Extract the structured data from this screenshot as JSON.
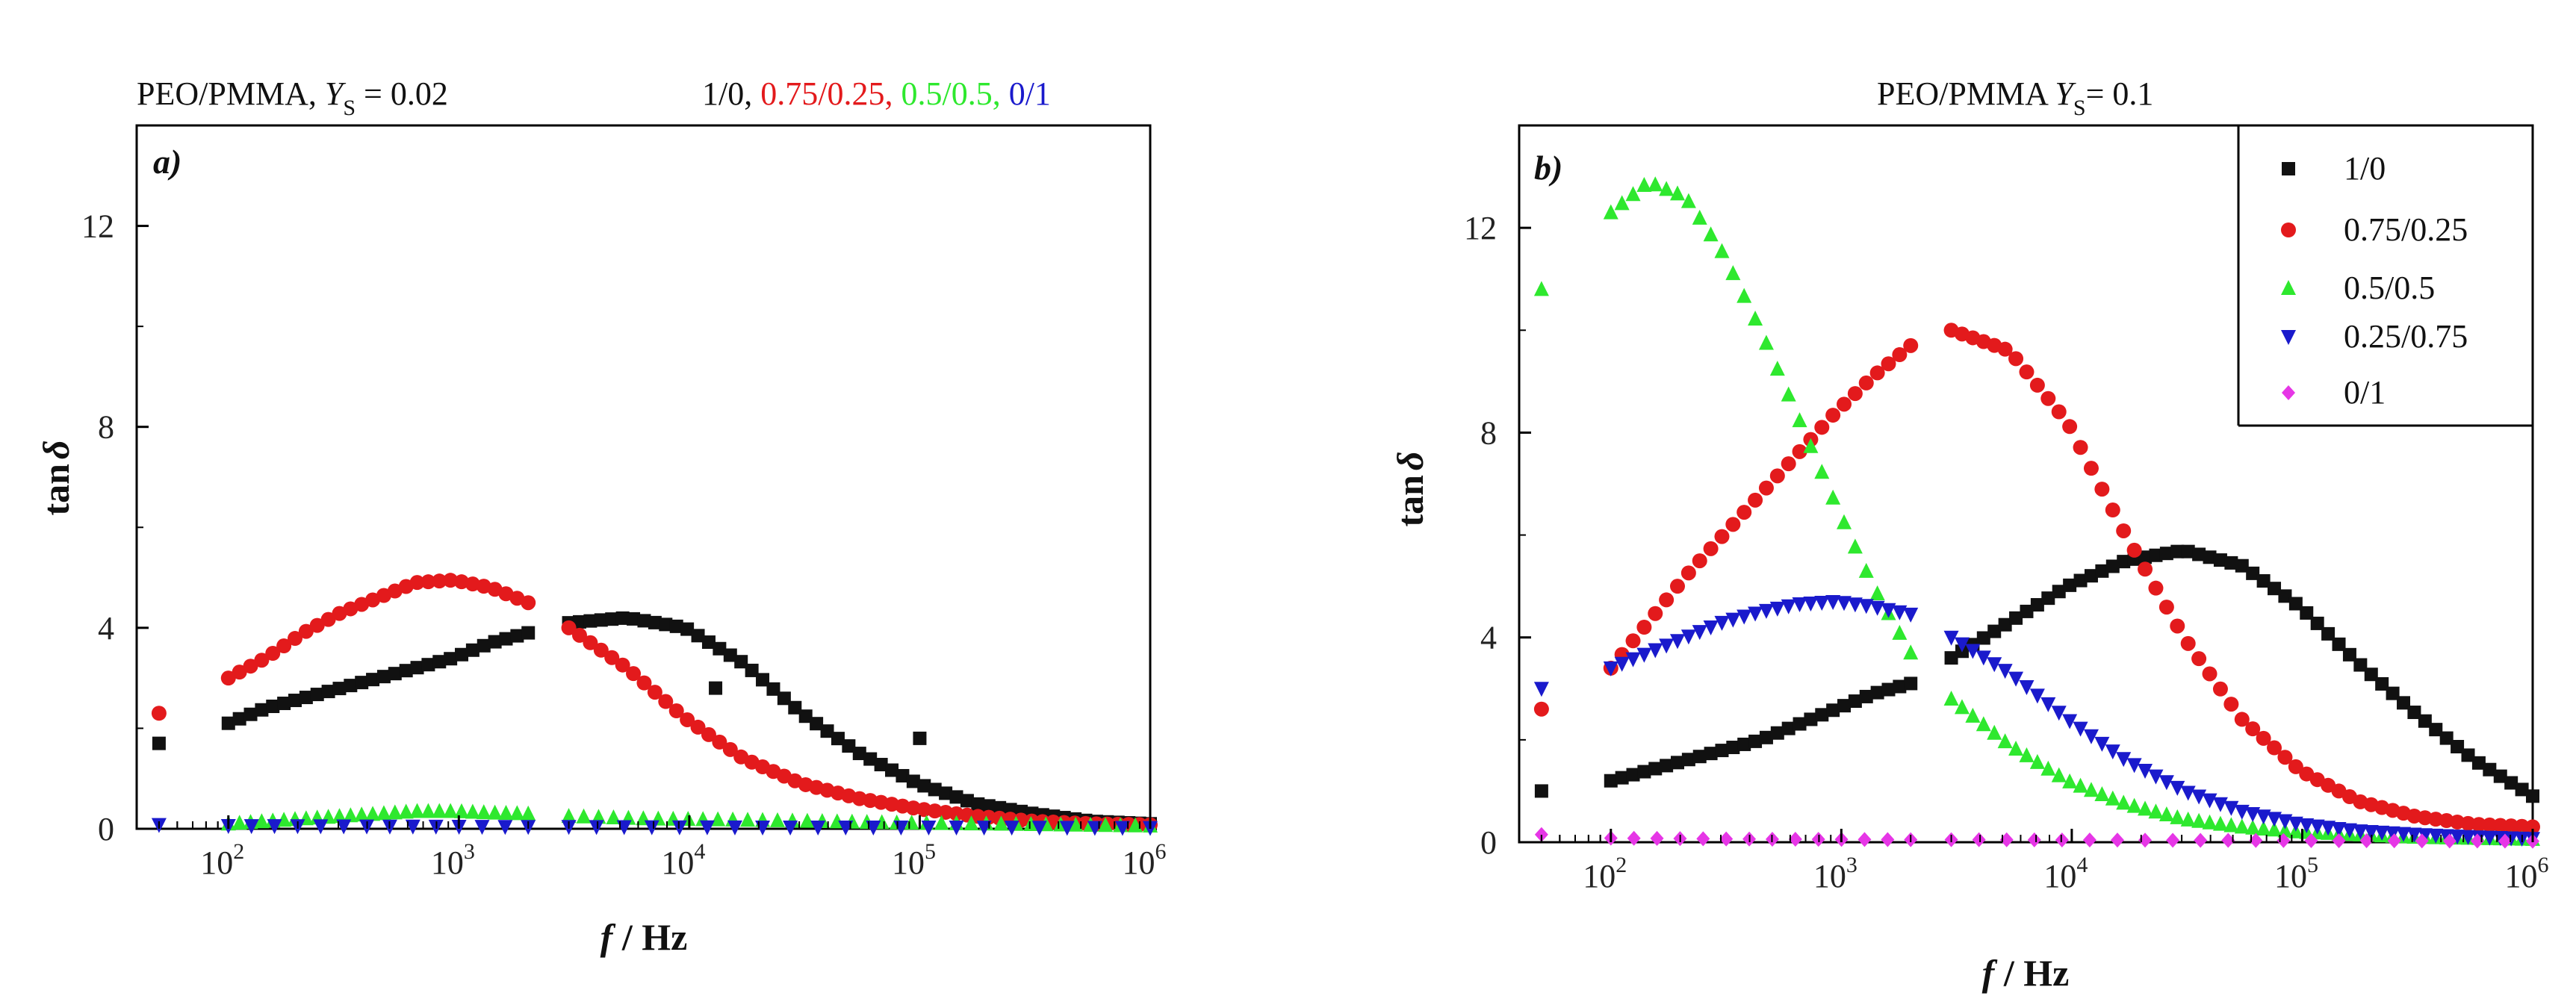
{
  "chart_data": [
    {
      "type": "scatter",
      "panel_label": "a)",
      "title_main": "PEO/PMMA,  ",
      "title_var": "Y",
      "title_sub": "S",
      "title_value": " = 0.02",
      "legend_inline": [
        {
          "text": "1/0,",
          "color": "#111111"
        },
        {
          "text": "0.75/0.25,",
          "color": "#e31a1c"
        },
        {
          "text": "0.5/0.5,",
          "color": "#2ee82e"
        },
        {
          "text": "0/1",
          "color": "#1a1acc"
        }
      ],
      "xlabel_var": "f",
      "xlabel_unit": " / Hz",
      "ylabel_text": "tan",
      "ylabel_symbol": "δ",
      "x_scale": "log",
      "xlim": [
        40,
        1000000
      ],
      "ylim": [
        0,
        14
      ],
      "x_ticks": [
        {
          "base": "10",
          "exp": "2",
          "value": 100
        },
        {
          "base": "10",
          "exp": "3",
          "value": 1000
        },
        {
          "base": "10",
          "exp": "4",
          "value": 10000
        },
        {
          "base": "10",
          "exp": "5",
          "value": 100000
        },
        {
          "base": "10",
          "exp": "6",
          "value": 1000000
        }
      ],
      "y_ticks": [
        {
          "label": "0",
          "value": 0
        },
        {
          "label": "4",
          "value": 4
        },
        {
          "label": "8",
          "value": 8
        },
        {
          "label": "12",
          "value": 12
        }
      ],
      "series": [
        {
          "name": "1/0",
          "color": "#111111",
          "marker": "square",
          "segments": [
            {
              "f_start": 50,
              "f_end": 50,
              "n": 1,
              "y": [
                1.7,
                1.7
              ]
            },
            {
              "f_start": 100,
              "f_end": 2000,
              "n": 28,
              "y": [
                2.1,
                2.4,
                2.6,
                2.8,
                3.0,
                3.2,
                3.4,
                3.7,
                3.9
              ]
            },
            {
              "f_start": 3000,
              "f_end": 1000000,
              "n": 55,
              "y": [
                4.1,
                4.2,
                4.0,
                3.3,
                2.3,
                1.5,
                0.9,
                0.5,
                0.3,
                0.15,
                0.1
              ]
            }
          ],
          "extra_points": [
            {
              "f": 100000,
              "y": 1.8
            },
            {
              "f": 13000,
              "y": 2.8
            }
          ]
        },
        {
          "name": "0.75/0.25",
          "color": "#e31a1c",
          "marker": "circle",
          "segments": [
            {
              "f_start": 50,
              "f_end": 50,
              "n": 1,
              "y": [
                2.3,
                2.3
              ]
            },
            {
              "f_start": 100,
              "f_end": 2000,
              "n": 28,
              "y": [
                3.0,
                3.4,
                3.9,
                4.3,
                4.6,
                4.9,
                4.95,
                4.8,
                4.5
              ]
            },
            {
              "f_start": 3000,
              "f_end": 1000000,
              "n": 55,
              "y": [
                4.0,
                3.2,
                2.2,
                1.4,
                0.9,
                0.6,
                0.4,
                0.25,
                0.15,
                0.1,
                0.08
              ]
            }
          ]
        },
        {
          "name": "0.5/0.5",
          "color": "#2ee82e",
          "marker": "triangle-up",
          "segments": [
            {
              "f_start": 100,
              "f_end": 2000,
              "n": 28,
              "y": [
                0.1,
                0.15,
                0.2,
                0.25,
                0.3,
                0.35,
                0.35,
                0.32,
                0.3
              ]
            },
            {
              "f_start": 3000,
              "f_end": 1000000,
              "n": 40,
              "y": [
                0.25,
                0.2,
                0.18,
                0.15,
                0.12,
                0.1,
                0.08,
                0.06
              ]
            }
          ]
        },
        {
          "name": "0/1",
          "color": "#1a1acc",
          "marker": "triangle-down",
          "segments": [
            {
              "f_start": 50,
              "f_end": 50,
              "n": 1,
              "y": [
                0.08,
                0.08
              ]
            },
            {
              "f_start": 100,
              "f_end": 2000,
              "n": 14,
              "y": [
                0.06,
                0.05,
                0.04
              ]
            },
            {
              "f_start": 3000,
              "f_end": 1000000,
              "n": 22,
              "y": [
                0.04,
                0.03,
                0.03,
                0.02
              ]
            }
          ]
        }
      ]
    },
    {
      "type": "scatter",
      "panel_label": "b)",
      "title_main": "PEO/PMMA  ",
      "title_var": "Y",
      "title_sub": "S",
      "title_value": "= 0.1",
      "legend": [
        {
          "label": "1/0",
          "color": "#111111",
          "marker": "square"
        },
        {
          "label": "0.75/0.25",
          "color": "#e31a1c",
          "marker": "circle"
        },
        {
          "label": "0.5/0.5",
          "color": "#2ee82e",
          "marker": "triangle-up"
        },
        {
          "label": "0.25/0.75",
          "color": "#1a1acc",
          "marker": "triangle-down"
        },
        {
          "label": "0/1",
          "color": "#e636e6",
          "marker": "diamond"
        }
      ],
      "legend_position": "top-right",
      "xlabel_var": "f",
      "xlabel_unit": " / Hz",
      "ylabel_text": "tan",
      "ylabel_symbol": "δ",
      "x_scale": "log",
      "xlim": [
        40,
        1000000
      ],
      "ylim": [
        0,
        14
      ],
      "x_ticks": [
        {
          "base": "10",
          "exp": "2",
          "value": 100
        },
        {
          "base": "10",
          "exp": "3",
          "value": 1000
        },
        {
          "base": "10",
          "exp": "4",
          "value": 10000
        },
        {
          "base": "10",
          "exp": "5",
          "value": 100000
        },
        {
          "base": "10",
          "exp": "6",
          "value": 1000000
        }
      ],
      "y_ticks": [
        {
          "label": "0",
          "value": 0
        },
        {
          "label": "4",
          "value": 4
        },
        {
          "label": "8",
          "value": 8
        },
        {
          "label": "12",
          "value": 12
        }
      ],
      "series": [
        {
          "name": "1/0",
          "color": "#111111",
          "marker": "square",
          "segments": [
            {
              "f_start": 50,
              "f_end": 50,
              "n": 1,
              "y": [
                1.0,
                1.0
              ]
            },
            {
              "f_start": 100,
              "f_end": 2000,
              "n": 28,
              "y": [
                1.2,
                1.4,
                1.6,
                1.8,
                2.0,
                2.3,
                2.6,
                2.9,
                3.1
              ]
            },
            {
              "f_start": 3000,
              "f_end": 1000000,
              "n": 55,
              "y": [
                3.6,
                4.3,
                5.0,
                5.5,
                5.7,
                5.4,
                4.6,
                3.5,
                2.5,
                1.6,
                0.9
              ]
            }
          ]
        },
        {
          "name": "0.75/0.25",
          "color": "#e31a1c",
          "marker": "circle",
          "segments": [
            {
              "f_start": 50,
              "f_end": 50,
              "n": 1,
              "y": [
                2.6,
                2.6
              ]
            },
            {
              "f_start": 100,
              "f_end": 2000,
              "n": 28,
              "y": [
                3.4,
                4.3,
                5.2,
                6.0,
                6.8,
                7.6,
                8.4,
                9.1,
                9.7
              ]
            },
            {
              "f_start": 3000,
              "f_end": 1000000,
              "n": 55,
              "y": [
                10.0,
                9.6,
                8.2,
                6.0,
                4.0,
                2.4,
                1.4,
                0.8,
                0.5,
                0.35,
                0.3
              ]
            }
          ]
        },
        {
          "name": "0.5/0.5",
          "color": "#2ee82e",
          "marker": "triangle-up",
          "segments": [
            {
              "f_start": 50,
              "f_end": 50,
              "n": 1,
              "y": [
                10.8,
                10.8
              ]
            },
            {
              "f_start": 100,
              "f_end": 2000,
              "n": 28,
              "y": [
                12.3,
                12.9,
                12.6,
                11.5,
                10.0,
                8.3,
                6.6,
                5.0,
                3.7
              ]
            },
            {
              "f_start": 3000,
              "f_end": 1000000,
              "n": 55,
              "y": [
                2.8,
                1.9,
                1.2,
                0.75,
                0.45,
                0.3,
                0.2,
                0.15,
                0.1,
                0.08,
                0.06
              ]
            }
          ]
        },
        {
          "name": "0.25/0.75",
          "color": "#1a1acc",
          "marker": "triangle-down",
          "segments": [
            {
              "f_start": 50,
              "f_end": 50,
              "n": 1,
              "y": [
                3.0,
                3.0
              ]
            },
            {
              "f_start": 100,
              "f_end": 2000,
              "n": 28,
              "y": [
                3.4,
                3.7,
                4.0,
                4.3,
                4.5,
                4.65,
                4.7,
                4.6,
                4.45
              ]
            },
            {
              "f_start": 3000,
              "f_end": 1000000,
              "n": 55,
              "y": [
                4.0,
                3.3,
                2.4,
                1.6,
                1.0,
                0.6,
                0.35,
                0.22,
                0.15,
                0.1,
                0.07
              ]
            }
          ]
        },
        {
          "name": "0/1",
          "color": "#e636e6",
          "marker": "diamond",
          "segments": [
            {
              "f_start": 50,
              "f_end": 50,
              "n": 1,
              "y": [
                0.15,
                0.15
              ]
            },
            {
              "f_start": 100,
              "f_end": 2000,
              "n": 14,
              "y": [
                0.08,
                0.06,
                0.05
              ]
            },
            {
              "f_start": 3000,
              "f_end": 1000000,
              "n": 22,
              "y": [
                0.05,
                0.04,
                0.03,
                0.02
              ]
            }
          ]
        }
      ]
    }
  ]
}
